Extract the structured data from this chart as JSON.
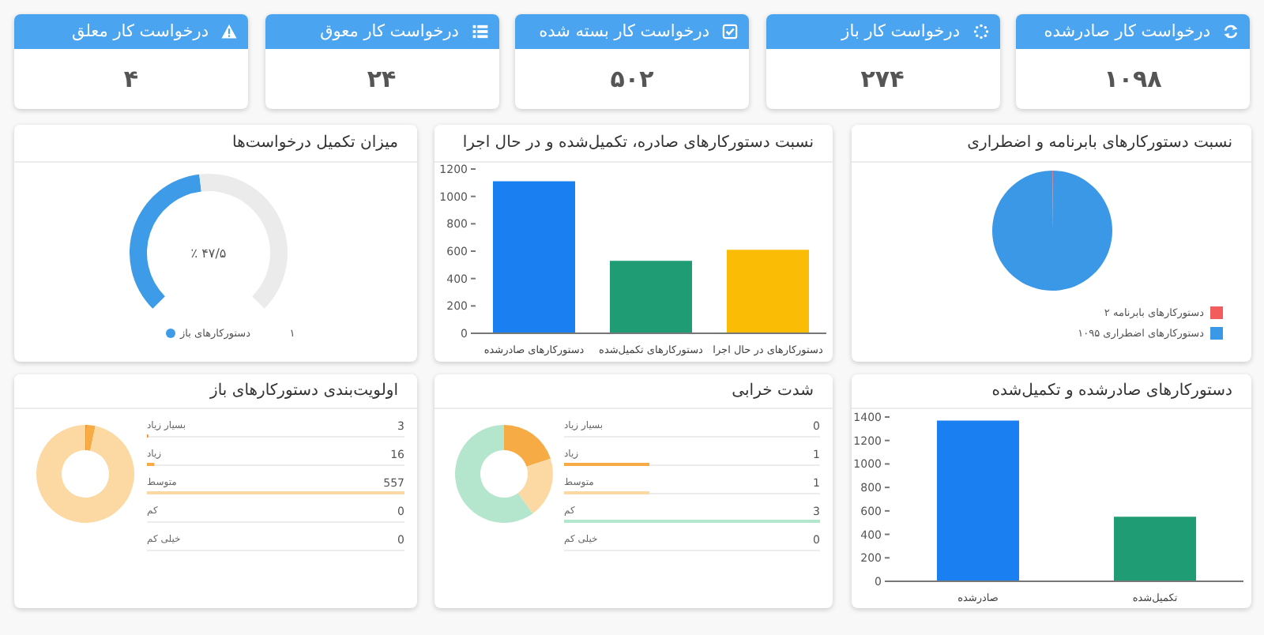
{
  "chart_data": [
    {
      "type": "other",
      "title": "درخواست کار صادرشده",
      "annotations": [
        "۱۰۹۸"
      ]
    },
    {
      "type": "other",
      "title": "درخواست کار باز",
      "annotations": [
        "۲۷۴"
      ]
    },
    {
      "type": "other",
      "title": "درخواست کار بسته شده",
      "annotations": [
        "۵۰۲"
      ]
    },
    {
      "type": "other",
      "title": "درخواست کار معوق",
      "annotations": [
        "۲۴"
      ]
    },
    {
      "type": "other",
      "title": "درخواست کار معلق",
      "annotations": [
        "۴"
      ]
    },
    {
      "type": "pie",
      "title": "نسبت دستورکارهای بابرنامه و اضطراری",
      "categories": [
        "دستورکارهای بابرنامه ۲",
        "دستورکارهای اضطراری ۱۰۹۵"
      ],
      "values": [
        2,
        1095
      ],
      "colors": [
        "#f25c5c",
        "#3b98e6"
      ],
      "legend": "bottom right"
    },
    {
      "type": "bar",
      "title": "نسبت دستورکارهای صادره، تکمیل‌شده و در حال اجرا",
      "categories": [
        "دستورکارهای صادرشده",
        "دستورکارهای تکمیل‌شده",
        "دستورکارهای در حال اجرا"
      ],
      "values": [
        1110,
        530,
        610
      ],
      "colors": [
        "#1a7ff0",
        "#1f9c74",
        "#fbbc05"
      ],
      "ylim": [
        0,
        1200
      ],
      "yticks": [
        0,
        200,
        400,
        600,
        800,
        1000,
        1200
      ]
    },
    {
      "type": "donut",
      "title": "میزان تکمیل درخواست‌ها",
      "categories": [
        "دستورکارهای باز",
        null
      ],
      "values": [
        47.5,
        52.5
      ],
      "colors": [
        "#3d9be8",
        "#ebebeb"
      ],
      "legend": "bottom",
      "annotations": [
        "٪ ۴۷/۵",
        "۱"
      ]
    },
    {
      "type": "bar",
      "title": "دستورکارهای صادرشده و تکمیل‌شده",
      "categories": [
        "صادرشده",
        "تکمیل‌شده"
      ],
      "values": [
        1370,
        550
      ],
      "colors": [
        "#1a7ff0",
        "#1f9c74"
      ],
      "ylim": [
        0,
        1400
      ],
      "yticks": [
        0,
        200,
        400,
        600,
        800,
        1000,
        1200,
        1400
      ]
    },
    {
      "type": "bar",
      "orientation": "horizontal",
      "title": "شدت خرابی",
      "categories": [
        "بسیار زیاد",
        "زیاد",
        "متوسط",
        "کم",
        "خیلی کم"
      ],
      "values": [
        0,
        1,
        1,
        3,
        0
      ],
      "colors": [
        "#f0922e",
        "#f7ab45",
        "#fcd9a3",
        "#b4e5cd",
        "#8fd2b1"
      ],
      "xlim": [
        0,
        3
      ],
      "data_labels": true,
      "tick_labels": "y"
    },
    {
      "type": "donut",
      "categories": [
        null,
        null,
        null,
        null,
        null
      ],
      "values": [
        0,
        20,
        20,
        60,
        0
      ],
      "colors": [
        "#f0922e",
        "#f7ab45",
        "#fcd9a3",
        "#b4e5cd",
        "#8fd2b1"
      ]
    },
    {
      "type": "bar",
      "orientation": "horizontal",
      "title": "اولویت‌بندی دستورکارهای باز",
      "categories": [
        "بسیار زیاد",
        "زیاد",
        "متوسط",
        "کم",
        "خیلی کم"
      ],
      "values": [
        3,
        16,
        557,
        0,
        0
      ],
      "colors": [
        "#f0922e",
        "#f7ab45",
        "#fcd9a3",
        "#b4e5cd",
        "#8fd2b1"
      ],
      "xlim": [
        0,
        557
      ],
      "data_labels": true,
      "tick_labels": "y"
    },
    {
      "type": "donut",
      "categories": [
        null,
        null,
        null,
        null,
        null
      ],
      "values": [
        0.5,
        2.8,
        96.7,
        0,
        0
      ],
      "colors": [
        "#f0922e",
        "#f7ab45",
        "#fcd9a3",
        "#b4e5cd",
        "#8fd2b1"
      ]
    }
  ]
}
